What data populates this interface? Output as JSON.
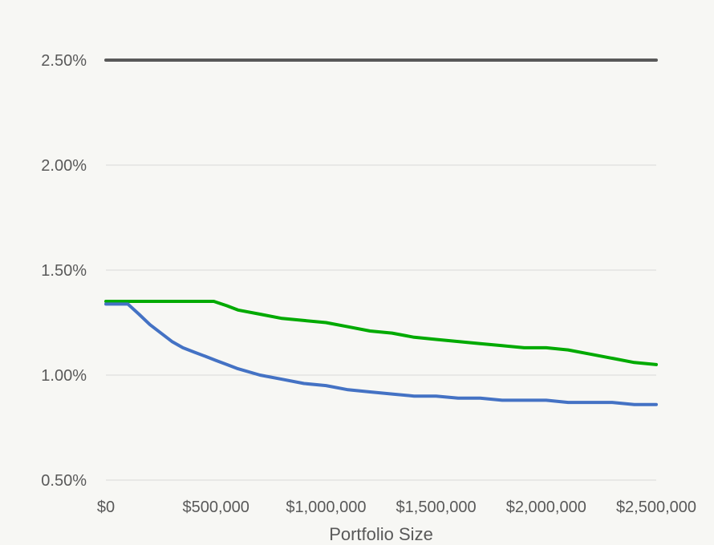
{
  "chart_data": {
    "type": "line",
    "title": "",
    "xlabel": "Portfolio Size",
    "ylabel": "",
    "xlim": [
      0,
      2500000
    ],
    "ylim": [
      0.005,
      0.025
    ],
    "x_ticks": [
      {
        "value": 0,
        "label": "$0"
      },
      {
        "value": 500000,
        "label": "$500,000"
      },
      {
        "value": 1000000,
        "label": "$1,000,000"
      },
      {
        "value": 1500000,
        "label": "$1,500,000"
      },
      {
        "value": 2000000,
        "label": "$2,000,000"
      },
      {
        "value": 2500000,
        "label": "$2,500,000"
      }
    ],
    "y_ticks": [
      {
        "value": 0.005,
        "label": "0.50%"
      },
      {
        "value": 0.01,
        "label": "1.00%"
      },
      {
        "value": 0.015,
        "label": "1.50%"
      },
      {
        "value": 0.02,
        "label": "2.00%"
      },
      {
        "value": 0.025,
        "label": "2.50%"
      }
    ],
    "grid": true,
    "legend": "none",
    "series": [
      {
        "color": "#595959",
        "x": [
          0,
          2500000
        ],
        "y": [
          0.025,
          0.025
        ]
      },
      {
        "color": "#00aa00",
        "x": [
          0,
          100000,
          200000,
          300000,
          400000,
          490000,
          550000,
          600000,
          700000,
          800000,
          900000,
          1000000,
          1100000,
          1200000,
          1300000,
          1400000,
          1500000,
          1600000,
          1700000,
          1800000,
          1900000,
          2000000,
          2100000,
          2200000,
          2300000,
          2400000,
          2500000
        ],
        "y": [
          0.01351,
          0.01351,
          0.01351,
          0.01351,
          0.01351,
          0.01351,
          0.0133,
          0.0131,
          0.0129,
          0.0127,
          0.0126,
          0.0125,
          0.0123,
          0.0121,
          0.012,
          0.0118,
          0.0117,
          0.0116,
          0.0115,
          0.0114,
          0.0113,
          0.0113,
          0.0112,
          0.011,
          0.0108,
          0.0106,
          0.0105
        ]
      },
      {
        "color": "#4472c4",
        "x": [
          0,
          100000,
          150000,
          200000,
          250000,
          300000,
          350000,
          400000,
          450000,
          500000,
          550000,
          600000,
          700000,
          800000,
          900000,
          1000000,
          1100000,
          1200000,
          1300000,
          1400000,
          1500000,
          1600000,
          1700000,
          1800000,
          1900000,
          2000000,
          2100000,
          2200000,
          2300000,
          2400000,
          2500000
        ],
        "y": [
          0.01338,
          0.01338,
          0.0129,
          0.0124,
          0.012,
          0.0116,
          0.0113,
          0.0111,
          0.0109,
          0.0107,
          0.0105,
          0.0103,
          0.01,
          0.0098,
          0.0096,
          0.0095,
          0.0093,
          0.0092,
          0.0091,
          0.009,
          0.009,
          0.0089,
          0.0089,
          0.0088,
          0.0088,
          0.0088,
          0.0087,
          0.0087,
          0.0087,
          0.0086,
          0.0086
        ]
      }
    ]
  }
}
